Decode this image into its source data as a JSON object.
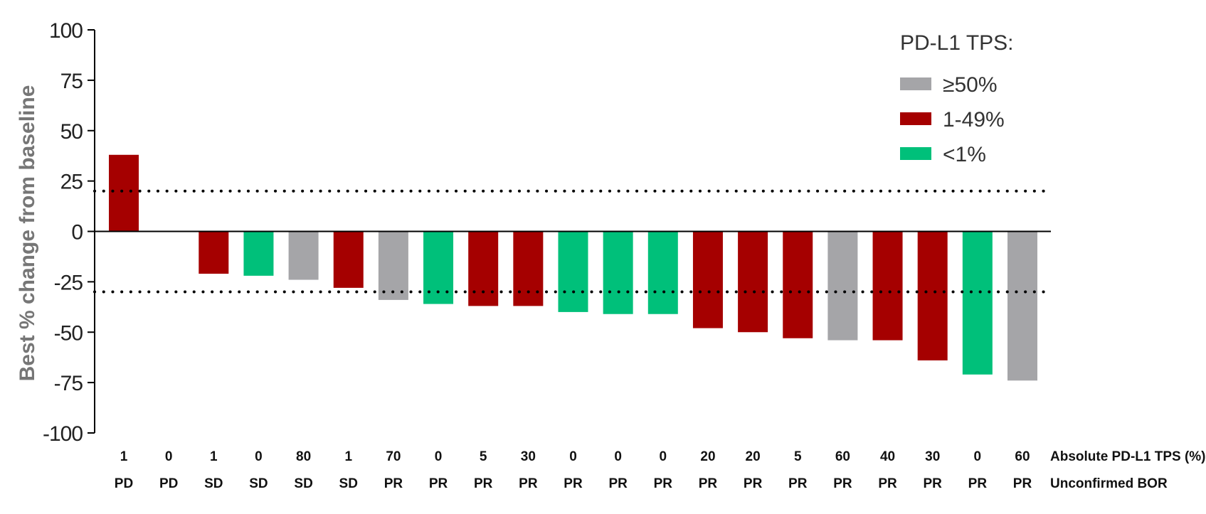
{
  "chart_data": {
    "type": "bar",
    "ylabel": "Best % change from baseline",
    "ylim": [
      -100,
      100
    ],
    "yticks": [
      100,
      75,
      50,
      25,
      0,
      -25,
      -50,
      -75,
      -100
    ],
    "reference_lines": [
      20,
      -30
    ],
    "legend": {
      "title": "PD-L1 TPS:",
      "position": "top-right",
      "entries": [
        {
          "label": "≥50%",
          "color": "#a5a5a8"
        },
        {
          "label": "1-49%",
          "color": "#a50000"
        },
        {
          "label": "<1%",
          "color": "#00c07a"
        }
      ]
    },
    "row_labels": {
      "tps": "Absolute PD-L1 TPS (%)",
      "bor": "Unconfirmed BOR"
    },
    "bars": [
      {
        "value": 38,
        "tps": "1",
        "bor": "PD",
        "group": "1-49%"
      },
      {
        "value": 0,
        "tps": "0",
        "bor": "PD",
        "group": "<1%"
      },
      {
        "value": -21,
        "tps": "1",
        "bor": "SD",
        "group": "1-49%"
      },
      {
        "value": -22,
        "tps": "0",
        "bor": "SD",
        "group": "<1%"
      },
      {
        "value": -24,
        "tps": "80",
        "bor": "SD",
        "group": "≥50%"
      },
      {
        "value": -28,
        "tps": "1",
        "bor": "SD",
        "group": "1-49%"
      },
      {
        "value": -34,
        "tps": "70",
        "bor": "PR",
        "group": "≥50%"
      },
      {
        "value": -36,
        "tps": "0",
        "bor": "PR",
        "group": "<1%"
      },
      {
        "value": -37,
        "tps": "5",
        "bor": "PR",
        "group": "1-49%"
      },
      {
        "value": -37,
        "tps": "30",
        "bor": "PR",
        "group": "1-49%"
      },
      {
        "value": -40,
        "tps": "0",
        "bor": "PR",
        "group": "<1%"
      },
      {
        "value": -41,
        "tps": "0",
        "bor": "PR",
        "group": "<1%"
      },
      {
        "value": -41,
        "tps": "0",
        "bor": "PR",
        "group": "<1%"
      },
      {
        "value": -48,
        "tps": "20",
        "bor": "PR",
        "group": "1-49%"
      },
      {
        "value": -50,
        "tps": "20",
        "bor": "PR",
        "group": "1-49%"
      },
      {
        "value": -53,
        "tps": "5",
        "bor": "PR",
        "group": "1-49%"
      },
      {
        "value": -54,
        "tps": "60",
        "bor": "PR",
        "group": "≥50%"
      },
      {
        "value": -54,
        "tps": "40",
        "bor": "PR",
        "group": "1-49%"
      },
      {
        "value": -64,
        "tps": "30",
        "bor": "PR",
        "group": "1-49%"
      },
      {
        "value": -71,
        "tps": "0",
        "bor": "PR",
        "group": "<1%"
      },
      {
        "value": -74,
        "tps": "60",
        "bor": "PR",
        "group": "≥50%"
      }
    ]
  }
}
